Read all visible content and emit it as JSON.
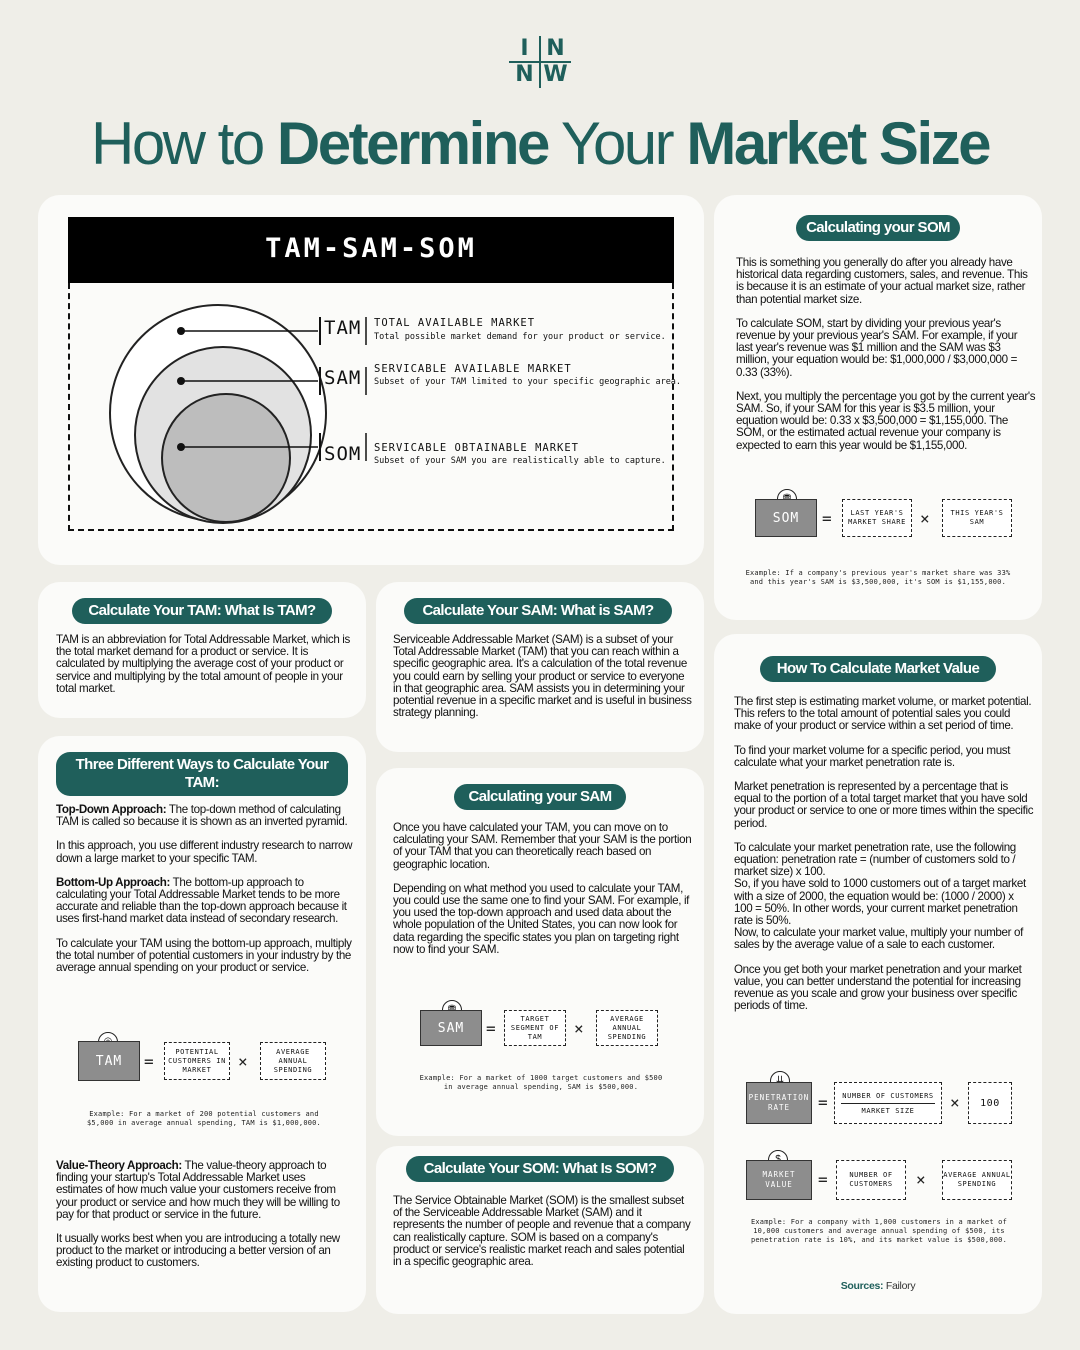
{
  "logo": {
    "letters": [
      "I",
      "N",
      "N",
      "W"
    ]
  },
  "title": {
    "part1": "How to ",
    "part2": "Determine",
    "part3": " Your ",
    "part4": "Market Size"
  },
  "diagram": {
    "header": "TAM-SAM-SOM",
    "rows": [
      {
        "abbr": "TAM",
        "name": "TOTAL AVAILABLE MARKET",
        "desc": "Total possible market demand for your product or service."
      },
      {
        "abbr": "SAM",
        "name": "SERVICABLE AVAILABLE MARKET",
        "desc": "Subset of your TAM limited to your specific geographic area."
      },
      {
        "abbr": "SOM",
        "name": "SERVICABLE OBTAINABLE MARKET",
        "desc": "Subset of your SAM you are realistically able to capture."
      }
    ]
  },
  "tam_what": {
    "title": "Calculate Your TAM: What Is TAM?",
    "body": "TAM is an abbreviation for Total Addressable Market, which is the total market demand for a product or service. It is calculated by multiplying the average cost of your product or service and multiplying by the total amount of people in your total market."
  },
  "tam_ways": {
    "title": "Three Different Ways to Calculate Your TAM:",
    "topdown_label": "Top-Down Approach:",
    "topdown_body": " The top-down method of calculating TAM is called so because it is shown as an inverted pyramid.",
    "topdown_p2": "In this approach, you use different industry research to narrow down a large market to your specific TAM.",
    "bottomup_label": "Bottom-Up Approach:",
    "bottomup_body": " The bottom-up approach to calculating your Total Addressable Market tends to be more accurate and reliable than the top-down approach because it uses first-hand market data instead of secondary research.",
    "bottomup_p2": "To calculate your TAM using the bottom-up approach, multiply the total number of potential customers in your industry by the average annual spending on your product or service.",
    "formula": {
      "result": "TAM",
      "a": "POTENTIAL CUSTOMERS IN MARKET",
      "b": "AVERAGE ANNUAL SPENDING"
    },
    "example": "Example: For a market of 200 potential customers and $5,000 in average annual spending, TAM is $1,000,000.",
    "value_label": "Value-Theory Approach:",
    "value_body": " The value-theory approach to finding your startup's Total Addressable Market uses estimates of how much value your customers receive from your product or service and how much they will be willing to pay for that product or service in the future.",
    "value_p2": "It usually works best when you are introducing a totally new product to the market or introducing a better version of an existing product to customers."
  },
  "sam_what": {
    "title": "Calculate Your SAM: What is SAM?",
    "body": "Serviceable Addressable Market (SAM) is a subset of your Total Addressable Market (TAM) that you can reach within a specific geographic area. It's a calculation of the total revenue you could earn by selling your product or service to everyone in that geographic area. SAM assists you in determining your potential revenue in a specific market and is useful in business strategy planning."
  },
  "sam_calc": {
    "title": "Calculating your SAM",
    "p1": "Once you have calculated your TAM, you can move on to calculating your SAM. Remember that your SAM is the portion of your TAM that you can theoretically reach based on geographic location.",
    "p2": "Depending on what method you used to calculate your TAM, you could use the same one to find your SAM. For example, if you used the top-down approach and used data about the whole population of the United States, you can now look for data regarding the specific states you plan on targeting right now to find your SAM.",
    "formula": {
      "result": "SAM",
      "a": "TARGET SEGMENT OF TAM",
      "b": "AVERAGE ANNUAL SPENDING"
    },
    "example": "Example: For a market of 1000 target customers and $500 in average annual spending, SAM is $500,000."
  },
  "som_what": {
    "title": "Calculate Your SOM: What Is SOM?",
    "body": "The Service Obtainable Market (SOM) is the smallest subset of the Serviceable Addressable Market (SAM) and it represents the number of people and revenue that a company can realistically capture. SOM is based on a company's product or service's realistic market reach and sales potential in a specific geographic area."
  },
  "som_calc": {
    "title": "Calculating your SOM",
    "p1": "This is something you generally do after you already have historical data regarding customers, sales, and revenue. This is because it is an estimate of your actual market size, rather than potential market size.",
    "p2": "To calculate SOM, start by dividing your previous year's revenue by your previous year's SAM. For example, if your last year's revenue was $1 million and the SAM was $3 million, your equation would be: $1,000,000 / $3,000,000 = 0.33 (33%).",
    "p3": "Next, you multiply the percentage you got by the current year's SAM. So, if your SAM for this year is $3.5 million, your equation would be: 0.33 x $3,500,000 = $1,155,000. The SOM, or the estimated actual revenue your company is expected to earn this year would be $1,155,000.",
    "formula": {
      "result": "SOM",
      "a": "LAST YEAR'S MARKET SHARE",
      "b": "THIS YEAR'S SAM"
    },
    "example": "Example: If a company's previous year's market share was 33% and this year's SAM is $3,500,000, it's SOM is $1,155,000."
  },
  "market_value": {
    "title": "How To Calculate Market Value",
    "p1": "The first step is estimating market volume, or market potential. This refers to the total amount of potential sales you could make of your product or service within a set period of time.",
    "p2": "To find your market volume for a specific period, you must calculate what your market penetration rate is.",
    "p3": "Market penetration is represented by a percentage that is equal to the portion of a total target market that you have sold your product or service to one or more times within the specific period.",
    "p4a": "To calculate your market penetration rate, use the following equation: penetration rate = (number of customers sold to / market size) x 100.",
    "p4b": "So, if you have sold to 1000 customers out of a target market with a size of 2000, the equation would be: (1000 / 2000) x 100 = 50%. In other words, your current market penetration rate is 50%.",
    "p4c": "Now, to calculate your market value, multiply your number of sales by the average value of a sale to each customer.",
    "p5": "Once you get both your market penetration and your market value, you can better understand the potential for increasing revenue as you scale and grow your business over specific periods of time.",
    "formula1": {
      "result": "PENETRATION RATE",
      "num": "NUMBER OF CUSTOMERS",
      "den": "MARKET SIZE",
      "b": "100"
    },
    "formula2": {
      "result": "MARKET VALUE",
      "a": "NUMBER OF CUSTOMERS",
      "b": "AVERAGE ANNUAL SPENDING"
    },
    "example": "Example: For a company with 1,000 customers in a market of 10,000 customers and average annual spending of $500, its penetration rate is 10%, and its market value is $500,000.",
    "sources_label": "Sources:",
    "sources_value": " Failory"
  },
  "symbols": {
    "equals": "=",
    "times": "×"
  },
  "colors": {
    "brand": "#1f5f5b",
    "background": "#efeee8",
    "card": "#fbfbf9",
    "formula_box": "#8d8d8d"
  }
}
